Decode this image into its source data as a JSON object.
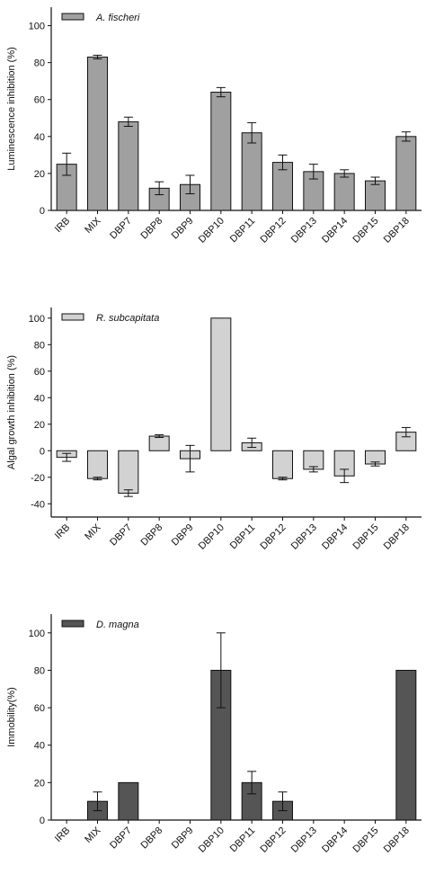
{
  "chart_data": [
    {
      "type": "bar",
      "categories": [
        "IRB",
        "MIX",
        "DBP7",
        "DBP8",
        "DBP9",
        "DBP10",
        "DBP11",
        "DBP12",
        "DBP13",
        "DBP14",
        "DBP15",
        "DBP18"
      ],
      "values": [
        25,
        83,
        48,
        12,
        14,
        64,
        42,
        26,
        21,
        20,
        16,
        40
      ],
      "errors": [
        6,
        1,
        2.5,
        3.5,
        5,
        2.5,
        5.5,
        4,
        4,
        2,
        2,
        2.5
      ],
      "xlabel": "",
      "ylabel": "Luminescence inhibition (%)",
      "ylim": [
        0,
        110
      ],
      "yticks": [
        0,
        20,
        40,
        60,
        80,
        100
      ],
      "legend": {
        "label": "A. fischeri",
        "placement": "top-left"
      },
      "colors": {
        "bar": "#a0a0a0"
      },
      "grid": false
    },
    {
      "type": "bar",
      "categories": [
        "IRB",
        "MIX",
        "DBP7",
        "DBP8",
        "DBP9",
        "DBP10",
        "DBP11",
        "DBP12",
        "DBP13",
        "DBP14",
        "DBP15",
        "DBP18"
      ],
      "values": [
        -5,
        -21,
        -32,
        11,
        -6,
        100,
        6,
        -21,
        -14,
        -19,
        -10,
        14
      ],
      "errors": [
        3,
        1,
        2.5,
        1,
        10,
        0,
        3.5,
        1,
        2,
        5,
        1.5,
        3.5
      ],
      "xlabel": "",
      "ylabel": "Algal growth inhibition (%)",
      "ylim": [
        -50,
        108
      ],
      "yticks": [
        -40,
        -20,
        0,
        20,
        40,
        60,
        80,
        100
      ],
      "legend": {
        "label": "R. subcapitata",
        "placement": "top-left"
      },
      "colors": {
        "bar": "#d2d2d2"
      },
      "grid": false
    },
    {
      "type": "bar",
      "categories": [
        "IRB",
        "MIX",
        "DBP7",
        "DBP8",
        "DBP9",
        "DBP10",
        "DBP11",
        "DBP12",
        "DBP13",
        "DBP14",
        "DBP15",
        "DBP18"
      ],
      "values": [
        0,
        10,
        20,
        0,
        0,
        80,
        20,
        10,
        0,
        0,
        0,
        80
      ],
      "errors": [
        0,
        5,
        0,
        0,
        0,
        20,
        6,
        5,
        0,
        0,
        0,
        0
      ],
      "xlabel": "",
      "ylabel": "Immobility(%)",
      "ylim": [
        0,
        110
      ],
      "yticks": [
        0,
        20,
        40,
        60,
        80,
        100
      ],
      "legend": {
        "label": "D. magna",
        "placement": "top-left"
      },
      "colors": {
        "bar": "#555555"
      },
      "grid": false
    }
  ]
}
